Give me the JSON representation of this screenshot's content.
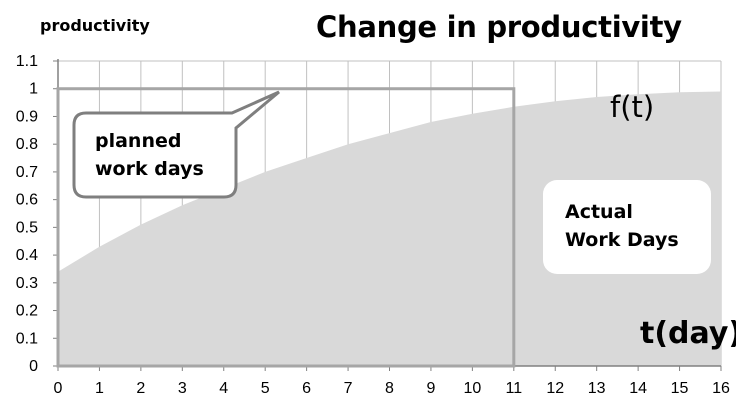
{
  "chart_data": {
    "type": "area",
    "title": "Change in productivity",
    "ylabel": "productivity",
    "xlabel": "t(day)",
    "xlim": [
      0,
      16
    ],
    "ylim": [
      0,
      1.1
    ],
    "x_ticks": [
      "0",
      "1",
      "2",
      "3",
      "4",
      "5",
      "6",
      "7",
      "8",
      "9",
      "10",
      "11",
      "12",
      "13",
      "14",
      "15",
      "16"
    ],
    "y_ticks": [
      "0",
      "0.1",
      "0.2",
      "0.3",
      "0.4",
      "0.5",
      "0.6",
      "0.7",
      "0.8",
      "0.9",
      "1",
      "1.1"
    ],
    "grid": "vertical",
    "series": [
      {
        "name": "f(t)",
        "x": [
          0,
          1,
          2,
          3,
          4,
          5,
          6,
          7,
          8,
          9,
          10,
          11,
          12,
          13,
          14,
          15,
          16
        ],
        "y": [
          0.34,
          0.43,
          0.51,
          0.58,
          0.64,
          0.7,
          0.75,
          0.8,
          0.84,
          0.88,
          0.91,
          0.935,
          0.955,
          0.97,
          0.98,
          0.987,
          0.99
        ],
        "color": "#d9d9d9"
      }
    ],
    "annotations": {
      "planned_box": {
        "x": [
          0,
          11
        ],
        "y": [
          0,
          1
        ],
        "line1": "planned",
        "line2": "work days"
      },
      "actual_label": {
        "line1": "Actual",
        "line2": "Work Days"
      }
    }
  }
}
